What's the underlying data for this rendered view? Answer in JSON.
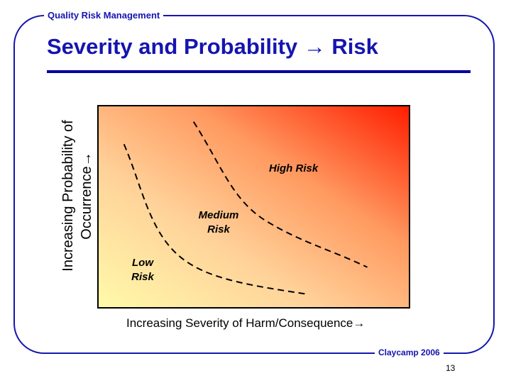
{
  "header": {
    "label": "Quality Risk Management"
  },
  "slide": {
    "title": "Severity and Probability",
    "title_arrow": "→",
    "title_end": "Risk"
  },
  "diagram": {
    "y_axis": {
      "line1": "Increasing Probability of",
      "line2": "Occurrence",
      "arrow": "→"
    },
    "x_axis": {
      "label": "Increasing Severity of Harm/Consequence",
      "arrow": "→"
    },
    "regions": {
      "high": {
        "label": "High Risk"
      },
      "medium": {
        "line1": "Medium",
        "line2": "Risk"
      },
      "low": {
        "line1": "Low",
        "line2": "Risk"
      }
    },
    "colors": {
      "low_corner": "#fffaaa",
      "high_corner": "#ff1e00",
      "accent": "#1515b0"
    }
  },
  "footer": {
    "credit": "Claycamp 2006",
    "page_number": "13"
  }
}
